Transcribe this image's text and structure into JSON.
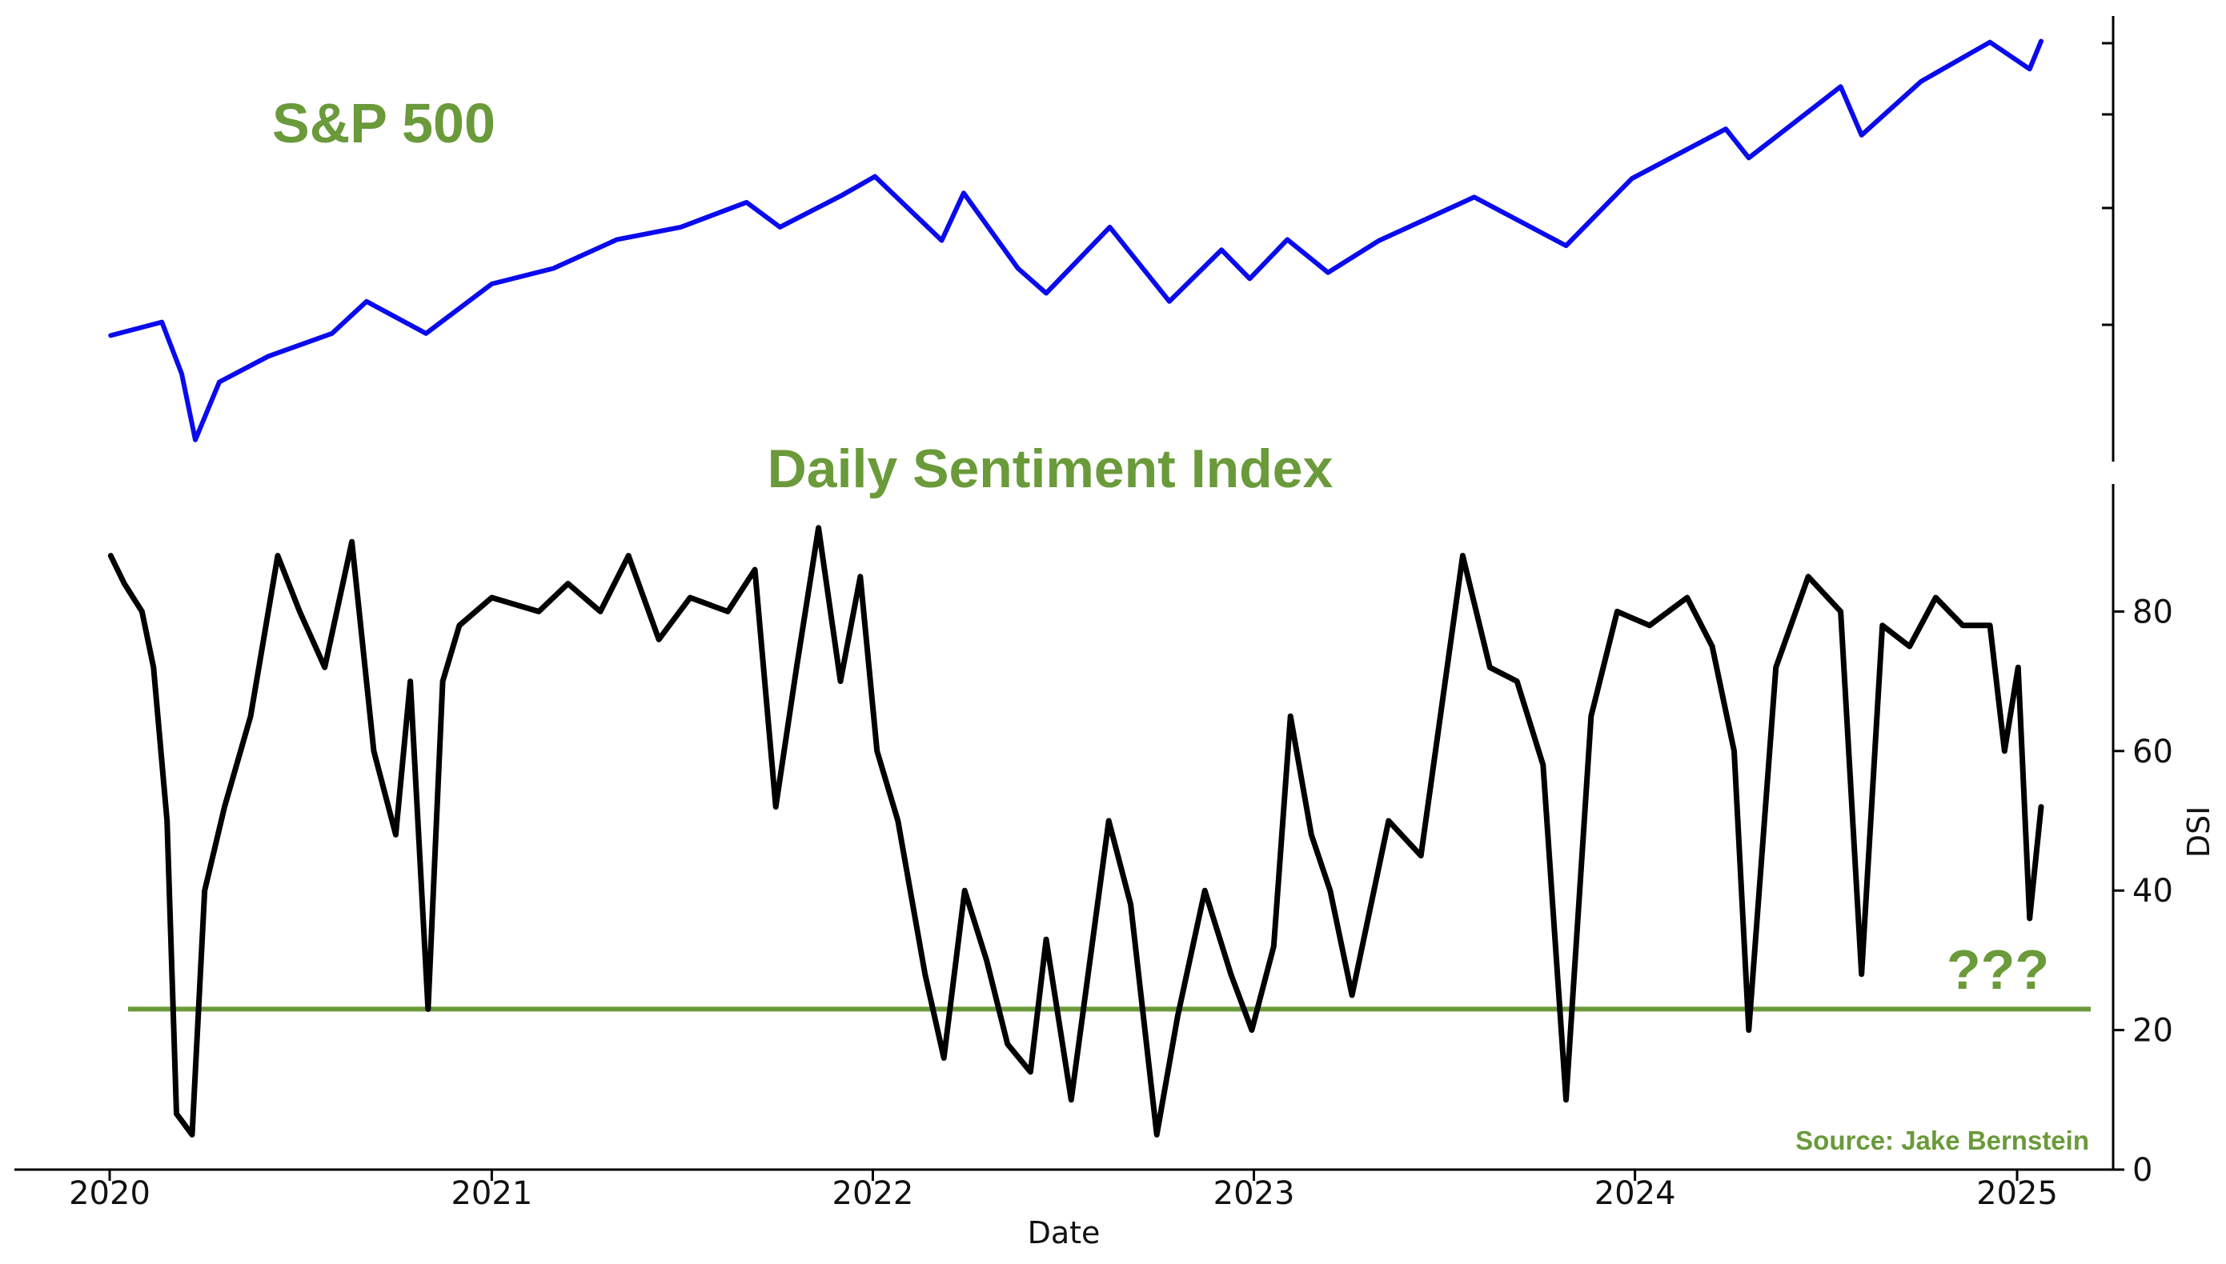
{
  "labels": {
    "top_title": "S&P 500",
    "bottom_title": "Daily Sentiment Index",
    "question": "???",
    "source": "Source: Jake Bernstein"
  },
  "colors": {
    "sp500_line": "#0a0aee",
    "dsi_line": "#000000",
    "threshold_line": "#6a9a3a",
    "title_green": "#6a9a3a"
  },
  "chart_data": [
    {
      "type": "line",
      "title": "S&P 500",
      "xlabel": "",
      "ylabel": "",
      "x_ticks": [],
      "y_ticks": [],
      "series": [
        {
          "color": "#0a0aee",
          "x": [
            "2020-01-02",
            "2020-02-01",
            "2020-02-20",
            "2020-03-10",
            "2020-03-23",
            "2020-04-15",
            "2020-06-01",
            "2020-08-01",
            "2020-09-03",
            "2020-10-30",
            "2021-01-01",
            "2021-03-01",
            "2021-05-01",
            "2021-07-01",
            "2021-09-02",
            "2021-10-04",
            "2021-12-01",
            "2022-01-03",
            "2022-03-08",
            "2022-03-29",
            "2022-05-20",
            "2022-06-16",
            "2022-08-16",
            "2022-10-12",
            "2022-12-01",
            "2022-12-28",
            "2023-02-02",
            "2023-03-13",
            "2023-05-01",
            "2023-07-31",
            "2023-10-27",
            "2023-12-29",
            "2024-03-28",
            "2024-04-19",
            "2024-07-16",
            "2024-08-05",
            "2024-10-01",
            "2024-12-06",
            "2025-01-13",
            "2025-01-24"
          ],
          "y": [
            3250,
            3330,
            3380,
            2880,
            2240,
            2800,
            3050,
            3270,
            3580,
            3270,
            3750,
            3900,
            4180,
            4300,
            4540,
            4300,
            4600,
            4790,
            4170,
            4630,
            3900,
            3660,
            4300,
            3580,
            4080,
            3800,
            4180,
            3860,
            4170,
            4590,
            4120,
            4770,
            5250,
            4970,
            5660,
            5190,
            5710,
            6090,
            5830,
            6100
          ]
        }
      ]
    },
    {
      "type": "line",
      "title": "Daily Sentiment Index",
      "xlabel": "Date",
      "ylabel": "DSI",
      "x_ticks": [
        "2020",
        "2021",
        "2022",
        "2023",
        "2024",
        "2025"
      ],
      "y_ticks": [
        "0",
        "20",
        "40",
        "60",
        "80"
      ],
      "ylim": [
        0,
        97
      ],
      "reference_line": 23,
      "series": [
        {
          "color": "#000000",
          "x": [
            "2020-01-02",
            "2020-01-15",
            "2020-02-01",
            "2020-02-12",
            "2020-02-25",
            "2020-03-05",
            "2020-03-20",
            "2020-04-01",
            "2020-04-20",
            "2020-05-15",
            "2020-06-10",
            "2020-07-01",
            "2020-07-25",
            "2020-08-20",
            "2020-09-10",
            "2020-10-01",
            "2020-10-15",
            "2020-11-01",
            "2020-11-15",
            "2020-12-01",
            "2021-01-01",
            "2021-02-15",
            "2021-03-15",
            "2021-04-15",
            "2021-05-12",
            "2021-06-10",
            "2021-07-10",
            "2021-08-15",
            "2021-09-10",
            "2021-09-30",
            "2021-10-20",
            "2021-11-10",
            "2021-12-01",
            "2021-12-20",
            "2022-01-05",
            "2022-01-25",
            "2022-02-20",
            "2022-03-10",
            "2022-03-30",
            "2022-04-20",
            "2022-05-10",
            "2022-06-01",
            "2022-06-16",
            "2022-07-10",
            "2022-08-15",
            "2022-09-05",
            "2022-09-30",
            "2022-10-20",
            "2022-11-15",
            "2022-12-10",
            "2022-12-30",
            "2023-01-20",
            "2023-02-05",
            "2023-02-25",
            "2023-03-15",
            "2023-04-05",
            "2023-05-10",
            "2023-06-10",
            "2023-07-20",
            "2023-08-15",
            "2023-09-10",
            "2023-10-05",
            "2023-10-27",
            "2023-11-20",
            "2023-12-15",
            "2024-01-15",
            "2024-02-20",
            "2024-03-15",
            "2024-04-05",
            "2024-04-19",
            "2024-05-15",
            "2024-06-15",
            "2024-07-16",
            "2024-08-05",
            "2024-08-25",
            "2024-09-20",
            "2024-10-15",
            "2024-11-10",
            "2024-12-06",
            "2024-12-20",
            "2025-01-02",
            "2025-01-13",
            "2025-01-24"
          ],
          "y": [
            88,
            84,
            80,
            72,
            50,
            8,
            5,
            40,
            52,
            65,
            88,
            80,
            72,
            90,
            60,
            48,
            70,
            23,
            70,
            78,
            82,
            80,
            84,
            80,
            88,
            76,
            82,
            80,
            86,
            52,
            72,
            92,
            70,
            85,
            60,
            50,
            28,
            16,
            40,
            30,
            18,
            14,
            33,
            10,
            50,
            38,
            5,
            22,
            40,
            28,
            20,
            32,
            65,
            48,
            40,
            25,
            50,
            45,
            88,
            72,
            70,
            58,
            10,
            65,
            80,
            78,
            82,
            75,
            60,
            20,
            72,
            85,
            80,
            28,
            78,
            75,
            82,
            78,
            78,
            60,
            72,
            36,
            52
          ]
        }
      ]
    }
  ]
}
